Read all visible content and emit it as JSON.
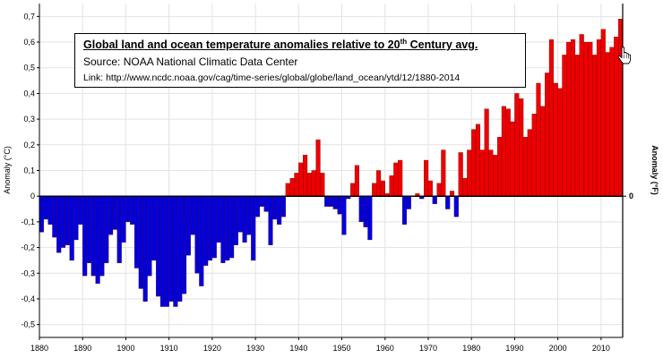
{
  "title": {
    "main": "Global land and ocean temperature anomalies relative to 20",
    "superscript": "th",
    "suffix": " Century avg.",
    "source": "Source: NOAA National Climatic Data Center",
    "link": "Link: http://www.ncdc.noaa.gov/cag/time-series/global/globe/land_ocean/ytd/12/1880-2014"
  },
  "icons": [
    "hand-cursor-icon"
  ],
  "chart_data": {
    "type": "bar",
    "ylabel": "Anomaly (°C)",
    "y2label": "Anomaly (°F)",
    "y2_ticks": [
      "0"
    ],
    "xlim": [
      1880,
      2015
    ],
    "ylim": [
      -0.55,
      0.75
    ],
    "x_ticks": [
      "1880",
      "1890",
      "1900",
      "1910",
      "1920",
      "1930",
      "1940",
      "1950",
      "1960",
      "1970",
      "1980",
      "1990",
      "2000",
      "2010"
    ],
    "y_ticks": [
      "0,7",
      "0,6",
      "0,5",
      "0,4",
      "0,3",
      "0,2",
      "0,1",
      "0",
      "-0,1",
      "-0,2",
      "-0,3",
      "-0,4",
      "-0,5"
    ],
    "grid": true,
    "positive_color": "#ee0000",
    "negative_color": "#0000dd",
    "x": [
      1880,
      1881,
      1882,
      1883,
      1884,
      1885,
      1886,
      1887,
      1888,
      1889,
      1890,
      1891,
      1892,
      1893,
      1894,
      1895,
      1896,
      1897,
      1898,
      1899,
      1900,
      1901,
      1902,
      1903,
      1904,
      1905,
      1906,
      1907,
      1908,
      1909,
      1910,
      1911,
      1912,
      1913,
      1914,
      1915,
      1916,
      1917,
      1918,
      1919,
      1920,
      1921,
      1922,
      1923,
      1924,
      1925,
      1926,
      1927,
      1928,
      1929,
      1930,
      1931,
      1932,
      1933,
      1934,
      1935,
      1936,
      1937,
      1938,
      1939,
      1940,
      1941,
      1942,
      1943,
      1944,
      1945,
      1946,
      1947,
      1948,
      1949,
      1950,
      1951,
      1952,
      1953,
      1954,
      1955,
      1956,
      1957,
      1958,
      1959,
      1960,
      1961,
      1962,
      1963,
      1964,
      1965,
      1966,
      1967,
      1968,
      1969,
      1970,
      1971,
      1972,
      1973,
      1974,
      1975,
      1976,
      1977,
      1978,
      1979,
      1980,
      1981,
      1982,
      1983,
      1984,
      1985,
      1986,
      1987,
      1988,
      1989,
      1990,
      1991,
      1992,
      1993,
      1994,
      1995,
      1996,
      1997,
      1998,
      1999,
      2000,
      2001,
      2002,
      2003,
      2004,
      2005,
      2006,
      2007,
      2008,
      2009,
      2010,
      2011,
      2012,
      2013,
      2014
    ],
    "values": [
      -0.14,
      -0.09,
      -0.11,
      -0.16,
      -0.22,
      -0.2,
      -0.19,
      -0.25,
      -0.17,
      -0.11,
      -0.31,
      -0.26,
      -0.31,
      -0.34,
      -0.31,
      -0.26,
      -0.15,
      -0.13,
      -0.26,
      -0.18,
      -0.1,
      -0.11,
      -0.28,
      -0.36,
      -0.41,
      -0.31,
      -0.25,
      -0.39,
      -0.43,
      -0.43,
      -0.41,
      -0.43,
      -0.41,
      -0.38,
      -0.23,
      -0.15,
      -0.3,
      -0.35,
      -0.27,
      -0.25,
      -0.24,
      -0.18,
      -0.26,
      -0.25,
      -0.24,
      -0.19,
      -0.14,
      -0.18,
      -0.15,
      -0.25,
      -0.08,
      -0.04,
      -0.06,
      -0.19,
      -0.09,
      -0.11,
      -0.08,
      0.05,
      0.07,
      0.09,
      0.13,
      0.16,
      0.09,
      0.1,
      0.22,
      0.09,
      -0.04,
      -0.04,
      -0.05,
      -0.07,
      -0.15,
      -0.01,
      0.05,
      0.12,
      -0.1,
      -0.12,
      -0.17,
      0.05,
      0.1,
      0.06,
      0.01,
      0.08,
      0.13,
      0.14,
      -0.11,
      -0.05,
      0.0,
      0.01,
      -0.01,
      0.14,
      0.06,
      -0.03,
      0.05,
      0.18,
      -0.05,
      0.02,
      -0.08,
      0.17,
      0.07,
      0.18,
      0.26,
      0.28,
      0.18,
      0.34,
      0.18,
      0.16,
      0.23,
      0.35,
      0.34,
      0.29,
      0.4,
      0.38,
      0.23,
      0.26,
      0.32,
      0.44,
      0.35,
      0.48,
      0.61,
      0.44,
      0.42,
      0.55,
      0.6,
      0.61,
      0.55,
      0.63,
      0.6,
      0.6,
      0.55,
      0.61,
      0.65,
      0.56,
      0.58,
      0.62,
      0.69
    ]
  }
}
